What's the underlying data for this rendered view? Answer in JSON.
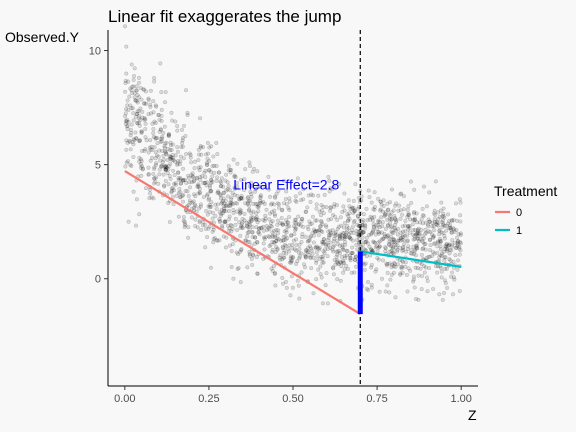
{
  "chart_data": {
    "type": "scatter",
    "title": "Linear fit exaggerates the jump",
    "xlabel": "Z",
    "ylabel": "Observed.Y",
    "xlim": [
      -0.05,
      1.05
    ],
    "ylim": [
      -4.7,
      10.9
    ],
    "x_ticks": [
      0,
      0.25,
      0.5,
      0.75,
      1
    ],
    "x_tick_labels": [
      "0.00",
      "0.25",
      "0.50",
      "0.75",
      "1.00"
    ],
    "y_ticks": [
      0,
      5,
      10
    ],
    "y_tick_labels": [
      "0",
      "5",
      "10"
    ],
    "grid": false,
    "cutoff": 0.7,
    "annotation": {
      "text": "Linear Effect=2.8",
      "x": 0.48,
      "y": 3.9
    },
    "effect_segment": {
      "x": 0.7,
      "y_from": -1.55,
      "y_to": 1.2
    },
    "fit_lines": [
      {
        "treatment": "0",
        "color": "#f8766d",
        "x": [
          0,
          0.7
        ],
        "y": [
          4.72,
          -1.55
        ]
      },
      {
        "treatment": "1",
        "color": "#00bfc4",
        "x": [
          0.7,
          1.0
        ],
        "y": [
          1.2,
          0.52
        ]
      }
    ],
    "legend": {
      "title": "Treatment",
      "position": "right",
      "entries": [
        {
          "label": "0",
          "color": "#f8766d"
        },
        {
          "label": "1",
          "color": "#00bfc4"
        }
      ]
    },
    "scatter_color": "#000000"
  }
}
